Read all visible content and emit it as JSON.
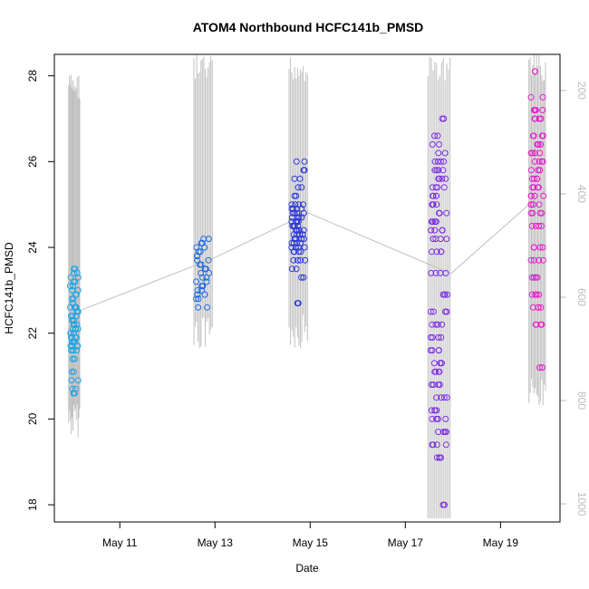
{
  "chart_data": {
    "type": "scatter",
    "title": "ATOM4 Northbound HCFC141b_PMSD",
    "xlabel": "Date",
    "ylabel": "HCFC141b_PMSD",
    "x_ticks": [
      "May 11",
      "May 13",
      "May 15",
      "May 17",
      "May 19"
    ],
    "xlim": [
      "May 9 15:00",
      "May 20 06:00"
    ],
    "ylim": [
      17.6,
      28.5
    ],
    "y_ticks": [
      18,
      20,
      22,
      24,
      26,
      28
    ],
    "y2_ticks": [
      200,
      400,
      600,
      800,
      1000
    ],
    "y2lim": [
      1035,
      130
    ],
    "grid": false,
    "marker": "open circle",
    "color_gradient": [
      "#18a8e8",
      "#1c6ae0",
      "#2430d8",
      "#7a2ce0",
      "#e21ccc"
    ],
    "secondary_line_color": "#c0c0c0",
    "series": [
      {
        "date": "May 10",
        "color": "#1aa4e8",
        "x_range": [
          "May 9 22:00",
          "May 10 04:00"
        ],
        "values": [
          20.6,
          20.7,
          20.9,
          21.1,
          21.4,
          21.6,
          21.7,
          21.8,
          21.9,
          22.0,
          22.1,
          22.2,
          22.3,
          22.4,
          22.5,
          22.6,
          22.7,
          22.8,
          22.9,
          23.0,
          23.1,
          23.2,
          23.3,
          23.4,
          23.5
        ]
      },
      {
        "date": "May 13",
        "color": "#1d6be0",
        "x_range": [
          "May 12 13:00",
          "May 12 23:00"
        ],
        "values": [
          22.6,
          22.8,
          22.9,
          23.0,
          23.1,
          23.2,
          23.3,
          23.4,
          23.5,
          23.6,
          23.7,
          23.8,
          23.9,
          24.0,
          24.1,
          24.2
        ]
      },
      {
        "date": "May 15",
        "color": "#2a36d8",
        "x_range": [
          "May 14 13:00",
          "May 14 23:00"
        ],
        "values": [
          22.7,
          23.3,
          23.5,
          23.7,
          23.9,
          24.0,
          24.1,
          24.2,
          24.3,
          24.4,
          24.5,
          24.6,
          24.7,
          24.8,
          24.9,
          25.0,
          25.2,
          25.4,
          25.6,
          25.8,
          26.0
        ]
      },
      {
        "date": "May 17",
        "color": "#7d30e2",
        "x_range": [
          "May 17 11:00",
          "May 17 23:00"
        ],
        "values": [
          18.0,
          19.1,
          19.4,
          19.7,
          20.0,
          20.2,
          20.5,
          20.8,
          21.1,
          21.3,
          21.6,
          21.9,
          22.2,
          22.5,
          22.9,
          23.4,
          23.9,
          24.2,
          24.4,
          24.6,
          24.8,
          25.0,
          25.2,
          25.4,
          25.6,
          25.8,
          26.0,
          26.2,
          26.4,
          26.6,
          27.0
        ]
      },
      {
        "date": "May 20",
        "color": "#e020c8",
        "x_range": [
          "May 19 14:00",
          "May 19 23:00"
        ],
        "values": [
          21.2,
          22.2,
          22.6,
          22.9,
          23.3,
          23.7,
          24.0,
          24.5,
          24.8,
          25.0,
          25.2,
          25.4,
          25.6,
          25.8,
          26.0,
          26.2,
          26.4,
          26.6,
          27.0,
          27.2,
          27.5,
          28.1
        ]
      }
    ]
  }
}
